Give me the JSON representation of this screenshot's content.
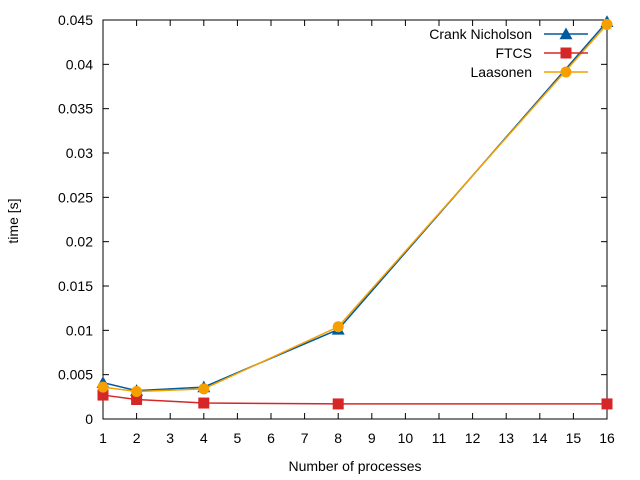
{
  "chart_data": {
    "type": "line",
    "xlabel": "Number of processes",
    "ylabel": "time [s]",
    "xlim": [
      1,
      16
    ],
    "ylim": [
      0,
      0.045
    ],
    "xticks": [
      1,
      2,
      3,
      4,
      5,
      6,
      7,
      8,
      9,
      10,
      11,
      12,
      13,
      14,
      15,
      16
    ],
    "yticks": [
      0,
      0.005,
      0.01,
      0.015,
      0.02,
      0.025,
      0.03,
      0.035,
      0.04,
      0.045
    ],
    "ytick_labels": [
      "0",
      "0.005",
      "0.01",
      "0.015",
      "0.02",
      "0.025",
      "0.03",
      "0.035",
      "0.04",
      "0.045"
    ],
    "grid": false,
    "legend_position": "top-right",
    "series": [
      {
        "name": "Crank Nicholson",
        "color": "#005a9c",
        "marker": "triangle",
        "points": [
          {
            "x": 1,
            "y": 0.0041
          },
          {
            "x": 2,
            "y": 0.0032
          },
          {
            "x": 4,
            "y": 0.0036
          },
          {
            "x": 8,
            "y": 0.0101
          },
          {
            "x": 16,
            "y": 0.0448
          }
        ]
      },
      {
        "name": "FTCS",
        "color": "#d62728",
        "marker": "square",
        "points": [
          {
            "x": 1,
            "y": 0.0027
          },
          {
            "x": 2,
            "y": 0.0022
          },
          {
            "x": 4,
            "y": 0.0018
          },
          {
            "x": 8,
            "y": 0.0017
          },
          {
            "x": 16,
            "y": 0.0017
          }
        ]
      },
      {
        "name": "Laasonen",
        "color": "#f5a000",
        "marker": "circle",
        "points": [
          {
            "x": 1,
            "y": 0.0036
          },
          {
            "x": 2,
            "y": 0.0031
          },
          {
            "x": 4,
            "y": 0.0034
          },
          {
            "x": 8,
            "y": 0.0104
          },
          {
            "x": 16,
            "y": 0.0445
          }
        ]
      }
    ]
  }
}
